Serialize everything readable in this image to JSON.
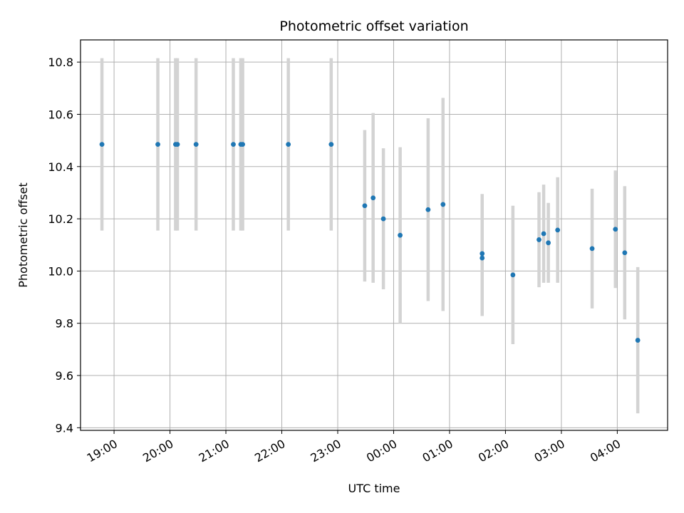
{
  "chart_data": {
    "type": "scatter",
    "title": "Photometric offset variation",
    "xlabel": "UTC time",
    "ylabel": "Photometric offset",
    "x_ticks": [
      "19:00",
      "20:00",
      "21:00",
      "22:00",
      "23:00",
      "00:00",
      "01:00",
      "02:00",
      "03:00",
      "04:00"
    ],
    "y_ticks": [
      "9.4",
      "9.6",
      "9.8",
      "10.0",
      "10.2",
      "10.4",
      "10.6",
      "10.8"
    ],
    "xlim_hours": [
      18.4,
      28.9
    ],
    "ylim": [
      9.39,
      10.885
    ],
    "grid": true,
    "point_color": "#1f77b4",
    "errorbar_color": "#d3d3d3",
    "points": [
      {
        "x": "18:47",
        "y": 10.485,
        "err": 0.33
      },
      {
        "x": "19:47",
        "y": 10.485,
        "err": 0.33
      },
      {
        "x": "20:06",
        "y": 10.485,
        "err": 0.33
      },
      {
        "x": "20:08",
        "y": 10.485,
        "err": 0.33
      },
      {
        "x": "20:28",
        "y": 10.485,
        "err": 0.33
      },
      {
        "x": "21:08",
        "y": 10.485,
        "err": 0.33
      },
      {
        "x": "21:16",
        "y": 10.485,
        "err": 0.33
      },
      {
        "x": "21:18",
        "y": 10.485,
        "err": 0.33
      },
      {
        "x": "22:07",
        "y": 10.485,
        "err": 0.33
      },
      {
        "x": "22:53",
        "y": 10.485,
        "err": 0.33
      },
      {
        "x": "23:29",
        "y": 10.25,
        "err": 0.29
      },
      {
        "x": "23:38",
        "y": 10.28,
        "err": 0.325
      },
      {
        "x": "23:49",
        "y": 10.2,
        "err": 0.27
      },
      {
        "x": "00:07",
        "y": 10.137,
        "err": 0.337
      },
      {
        "x": "00:37",
        "y": 10.235,
        "err": 0.35
      },
      {
        "x": "00:53",
        "y": 10.255,
        "err": 0.408
      },
      {
        "x": "01:35",
        "y": 10.067,
        "err": 0.228
      },
      {
        "x": "01:35",
        "y": 10.05,
        "err": 0.222
      },
      {
        "x": "02:08",
        "y": 9.985,
        "err": 0.265
      },
      {
        "x": "02:36",
        "y": 10.12,
        "err": 0.182
      },
      {
        "x": "02:41",
        "y": 10.143,
        "err": 0.188
      },
      {
        "x": "02:46",
        "y": 10.108,
        "err": 0.153
      },
      {
        "x": "02:56",
        "y": 10.157,
        "err": 0.202
      },
      {
        "x": "03:33",
        "y": 10.086,
        "err": 0.229
      },
      {
        "x": "03:58",
        "y": 10.16,
        "err": 0.225
      },
      {
        "x": "04:08",
        "y": 10.07,
        "err": 0.255
      },
      {
        "x": "04:22",
        "y": 9.735,
        "err": 0.28
      }
    ]
  }
}
